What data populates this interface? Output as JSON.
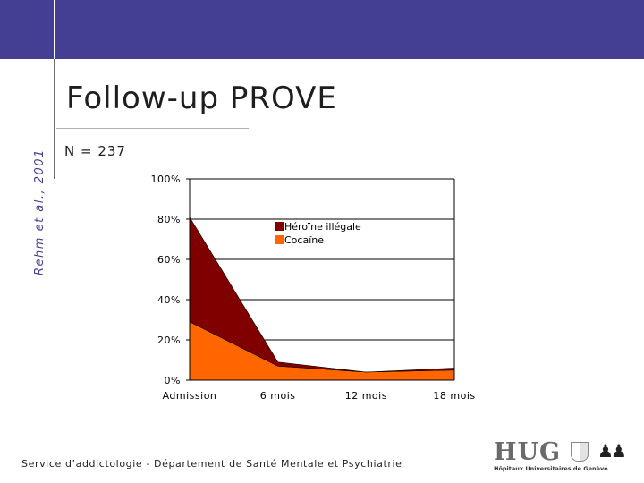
{
  "slide": {
    "title": "Follow-up PROVE",
    "n_label": "N = 237",
    "reference": "Rehm et al., 2001",
    "footer": "Service d’addictologie - Département de Santé Mentale et Psychiatrie",
    "logo_text": "HUG",
    "logo_subtitle": "Hôpitaux Universitaires de Genève"
  },
  "colors": {
    "band": "#453F93",
    "heroin": "#800000",
    "cocaine": "#FF6600"
  },
  "chart_data": {
    "type": "area",
    "stacked": true,
    "categories": [
      "Admission",
      "6 mois",
      "12 mois",
      "18 mois"
    ],
    "yticks": [
      "0%",
      "20%",
      "40%",
      "60%",
      "80%",
      "100%"
    ],
    "ylim": [
      0,
      100
    ],
    "grid": true,
    "legend_position": "top-right",
    "series": [
      {
        "name": "Cocaïne",
        "color": "#FF6600",
        "values": [
          29,
          7,
          4,
          5
        ]
      },
      {
        "name": "Héroïne illégale",
        "color": "#800000",
        "values": [
          52,
          2,
          0,
          1
        ]
      }
    ]
  }
}
